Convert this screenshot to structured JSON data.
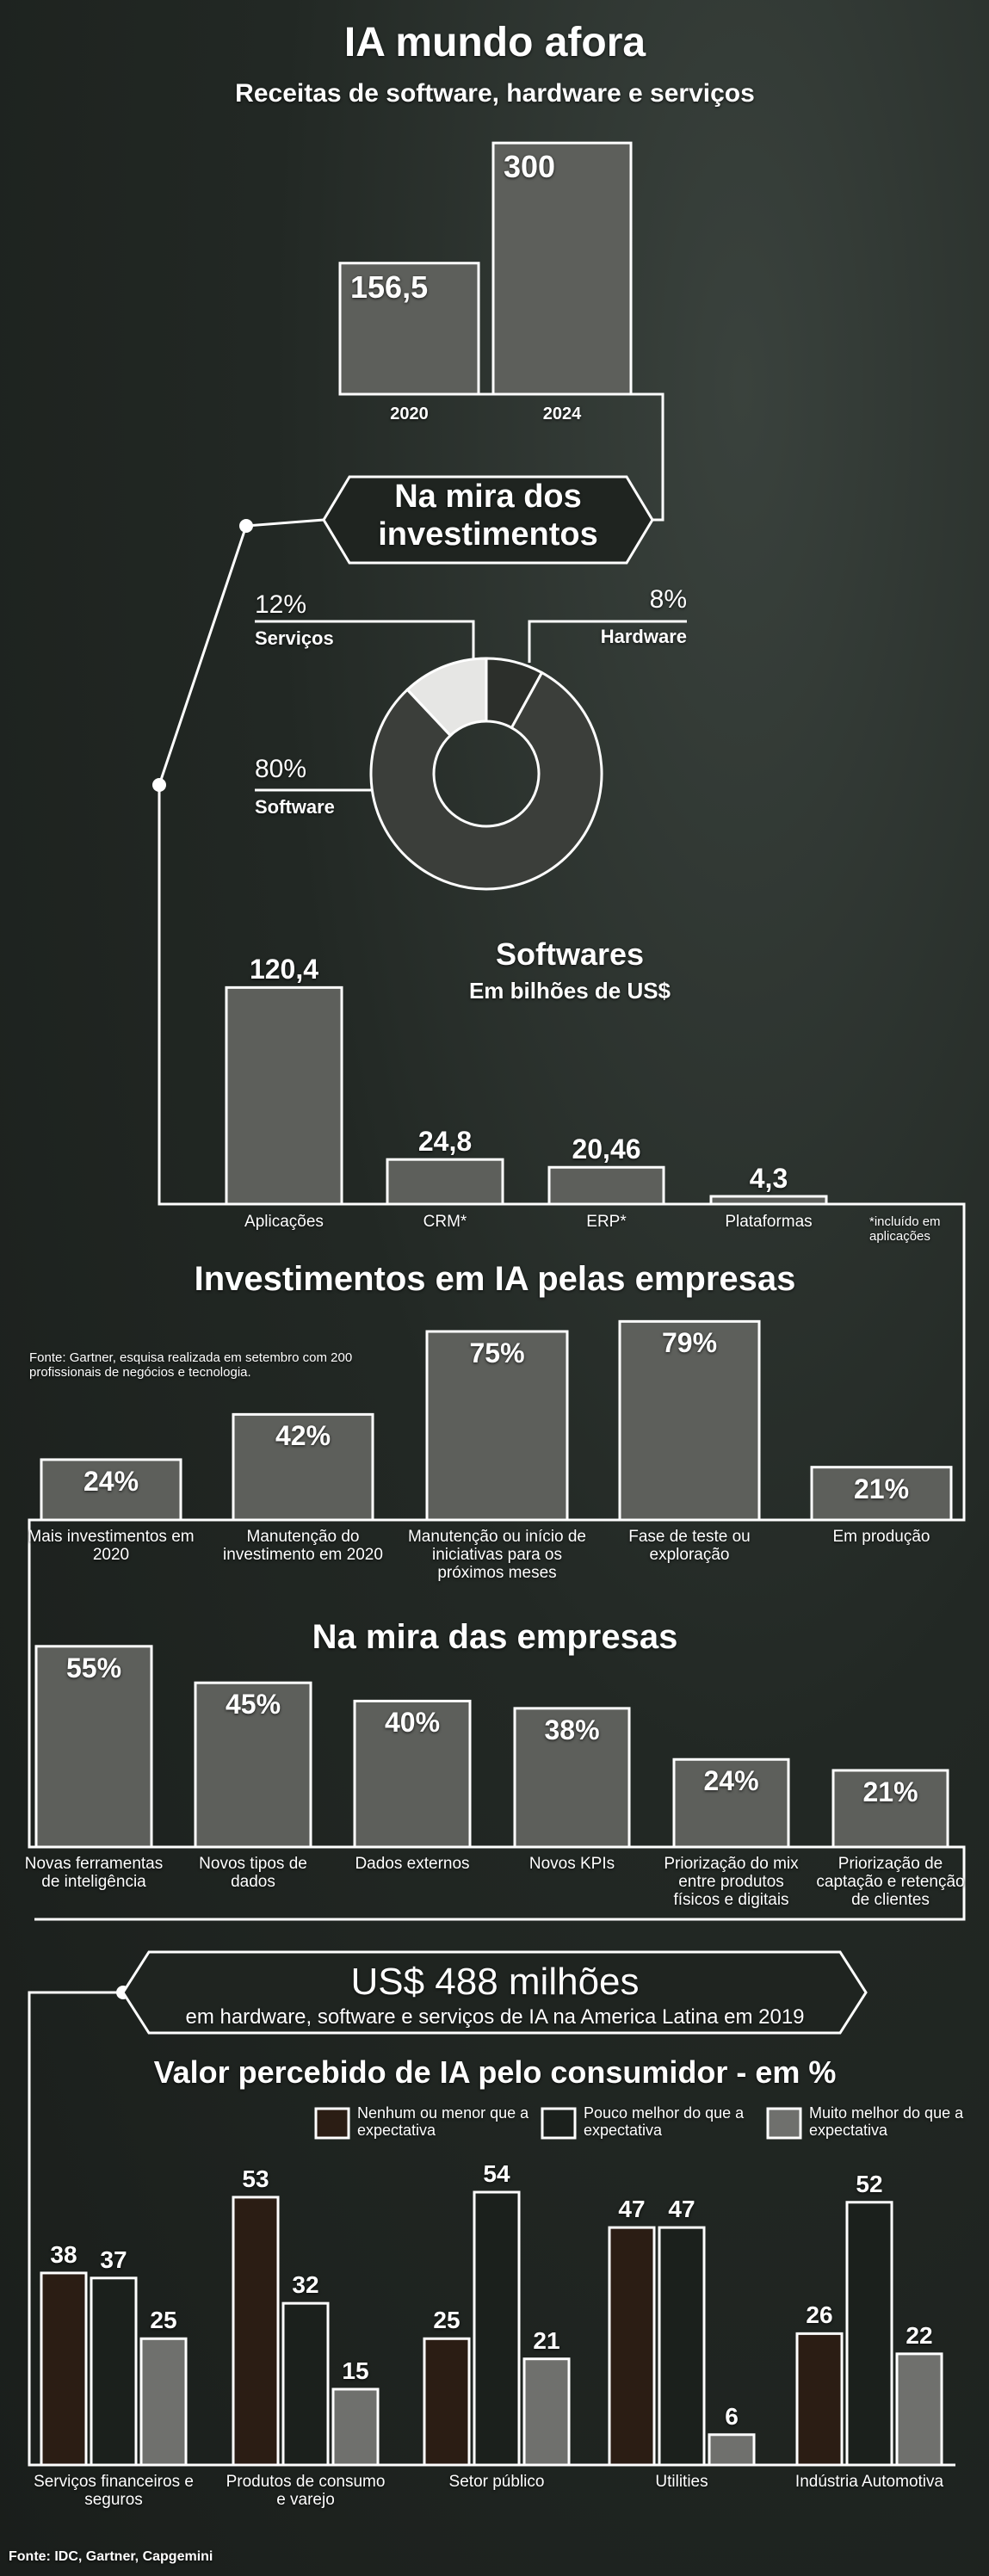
{
  "chart_data": [
    {
      "type": "bar",
      "title": "IA mundo afora",
      "subtitle": "Receitas  de software, hardware e serviços",
      "categories": [
        "2020",
        "2024"
      ],
      "values": [
        156.5,
        300
      ],
      "value_labels": [
        "156,5",
        "300"
      ],
      "color": "#5d5f5b"
    },
    {
      "type": "pie",
      "title": "Na mira dos investimentos",
      "categories": [
        "Hardware",
        "Software",
        "Serviços"
      ],
      "values": [
        8,
        80,
        12
      ],
      "value_labels": [
        "8%",
        "80%",
        "12%"
      ],
      "colors": [
        "#2c2f2b",
        "#3b3e3a",
        "#e6e6e4"
      ]
    },
    {
      "type": "bar",
      "title": "Softwares",
      "subtitle": "Em bilhões de US$",
      "categories": [
        "Aplicações",
        "CRM*",
        "ERP*",
        "Plataformas"
      ],
      "values": [
        120.4,
        24.8,
        20.46,
        4.3
      ],
      "value_labels": [
        "120,4",
        "24,8",
        "20,46",
        "4,3"
      ],
      "note": "*incluído em aplicações",
      "color": "#5d5f5b"
    },
    {
      "type": "bar",
      "title": "Investimentos em IA pelas empresas",
      "note": "Fonte: Gartner, esquisa realizada em setembro com 200 profissionais de negócios e tecnologia.",
      "categories": [
        "Mais investimentos em 2020",
        "Manutenção do investimento em 2020",
        "Manutenção ou início de iniciativas para os próximos meses",
        "Fase de teste ou exploração",
        "Em produção"
      ],
      "values": [
        24,
        42,
        75,
        79,
        21
      ],
      "value_labels": [
        "24%",
        "42%",
        "75%",
        "79%",
        "21%"
      ],
      "color": "#5d5f5b"
    },
    {
      "type": "bar",
      "title": "Na mira das empresas",
      "categories": [
        "Novas ferramentas de inteligência",
        "Novos tipos de dados",
        "Dados externos",
        "Novos KPIs",
        "Priorização do mix entre produtos físicos e digitais",
        "Priorização de captação e retenção de clientes"
      ],
      "values": [
        55,
        45,
        40,
        38,
        24,
        21
      ],
      "value_labels": [
        "55%",
        "45%",
        "40%",
        "38%",
        "24%",
        "21%"
      ],
      "color": "#5d5f5b"
    },
    {
      "type": "grouped_bar",
      "title": "Valor percebido de IA pelo consumidor - em %",
      "categories": [
        "Serviços financeiros e seguros",
        "Produtos de consumo e varejo",
        "Setor público",
        "Utilities",
        "Indústria Automotiva"
      ],
      "series": [
        {
          "name": "Nenhum ou menor que a expectativa",
          "color": "#2b1d14",
          "values": [
            38,
            53,
            25,
            47,
            26
          ]
        },
        {
          "name": "Pouco melhor do que a expectativa",
          "color": "#1b201c",
          "values": [
            37,
            32,
            54,
            47,
            52
          ]
        },
        {
          "name": "Muito melhor do que a expectativa",
          "color": "#6f706d",
          "values": [
            25,
            15,
            21,
            6,
            22
          ]
        }
      ]
    }
  ],
  "callout": {
    "title": "US$ 488 milhões",
    "subtitle": "em hardware, software e serviços de IA na America Latina em 2019"
  },
  "source": "Fonte: IDC, Gartner, Capgemini"
}
